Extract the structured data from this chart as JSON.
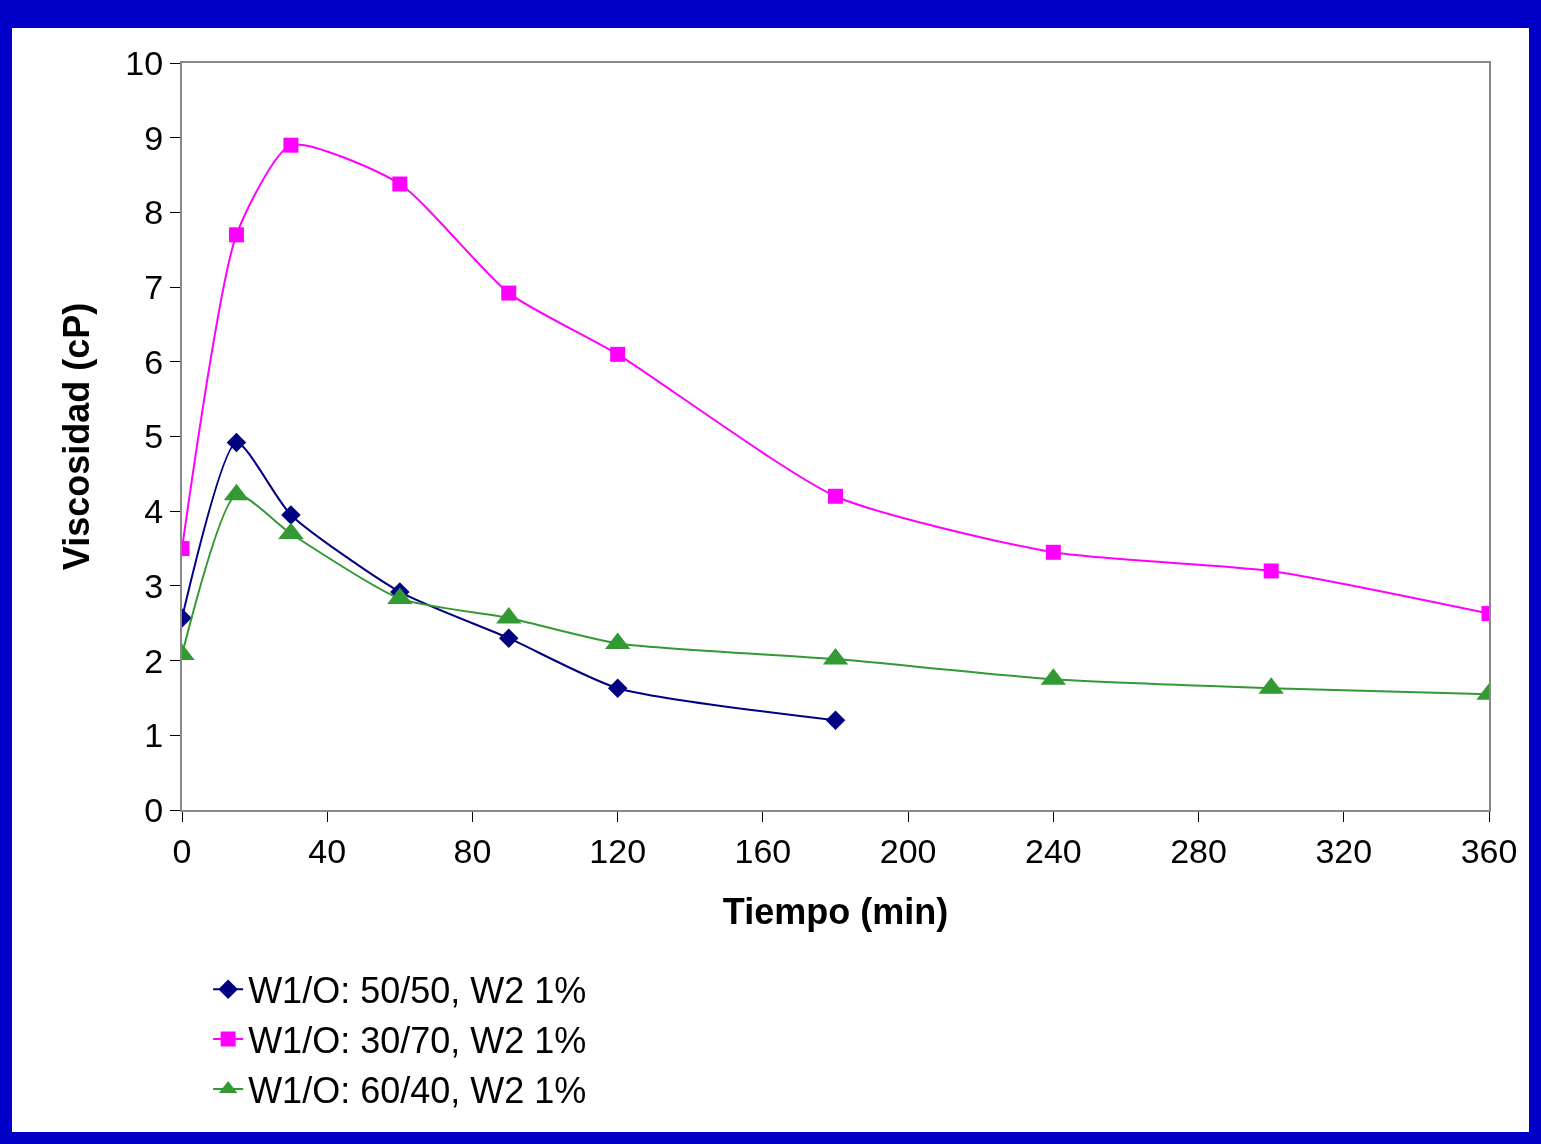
{
  "chart_data": {
    "type": "line",
    "xlabel": "Tiempo (min)",
    "ylabel": "Viscosidad (cP)",
    "xlim": [
      0,
      360
    ],
    "xticks": [
      0,
      40,
      80,
      120,
      160,
      200,
      240,
      280,
      320,
      360
    ],
    "ylim": [
      0,
      10
    ],
    "yticks": [
      0,
      1,
      2,
      3,
      4,
      5,
      6,
      7,
      8,
      9,
      10
    ],
    "grid": false,
    "legend": "bottom",
    "line_style": "solid",
    "series": [
      {
        "name": "W1/O: 50/50, W2 1%",
        "color": "#000080",
        "marker": "diamond",
        "x": [
          0,
          15,
          30,
          60,
          90,
          120,
          180
        ],
        "values": [
          2.57,
          4.92,
          3.95,
          2.92,
          2.3,
          1.63,
          1.2
        ]
      },
      {
        "name": "W1/O: 30/70, W2 1%",
        "color": "#ff00ff",
        "marker": "square",
        "x": [
          0,
          15,
          30,
          60,
          90,
          120,
          180,
          240,
          300,
          360
        ],
        "values": [
          3.5,
          7.7,
          8.9,
          8.38,
          6.92,
          6.1,
          4.2,
          3.45,
          3.2,
          2.63
        ]
      },
      {
        "name": "W1/O: 60/40, W2 1%",
        "color": "#339933",
        "marker": "triangle",
        "x": [
          0,
          15,
          30,
          60,
          90,
          120,
          180,
          240,
          300,
          360
        ],
        "values": [
          2.08,
          4.22,
          3.7,
          2.83,
          2.57,
          2.23,
          2.02,
          1.75,
          1.63,
          1.55
        ]
      }
    ]
  }
}
